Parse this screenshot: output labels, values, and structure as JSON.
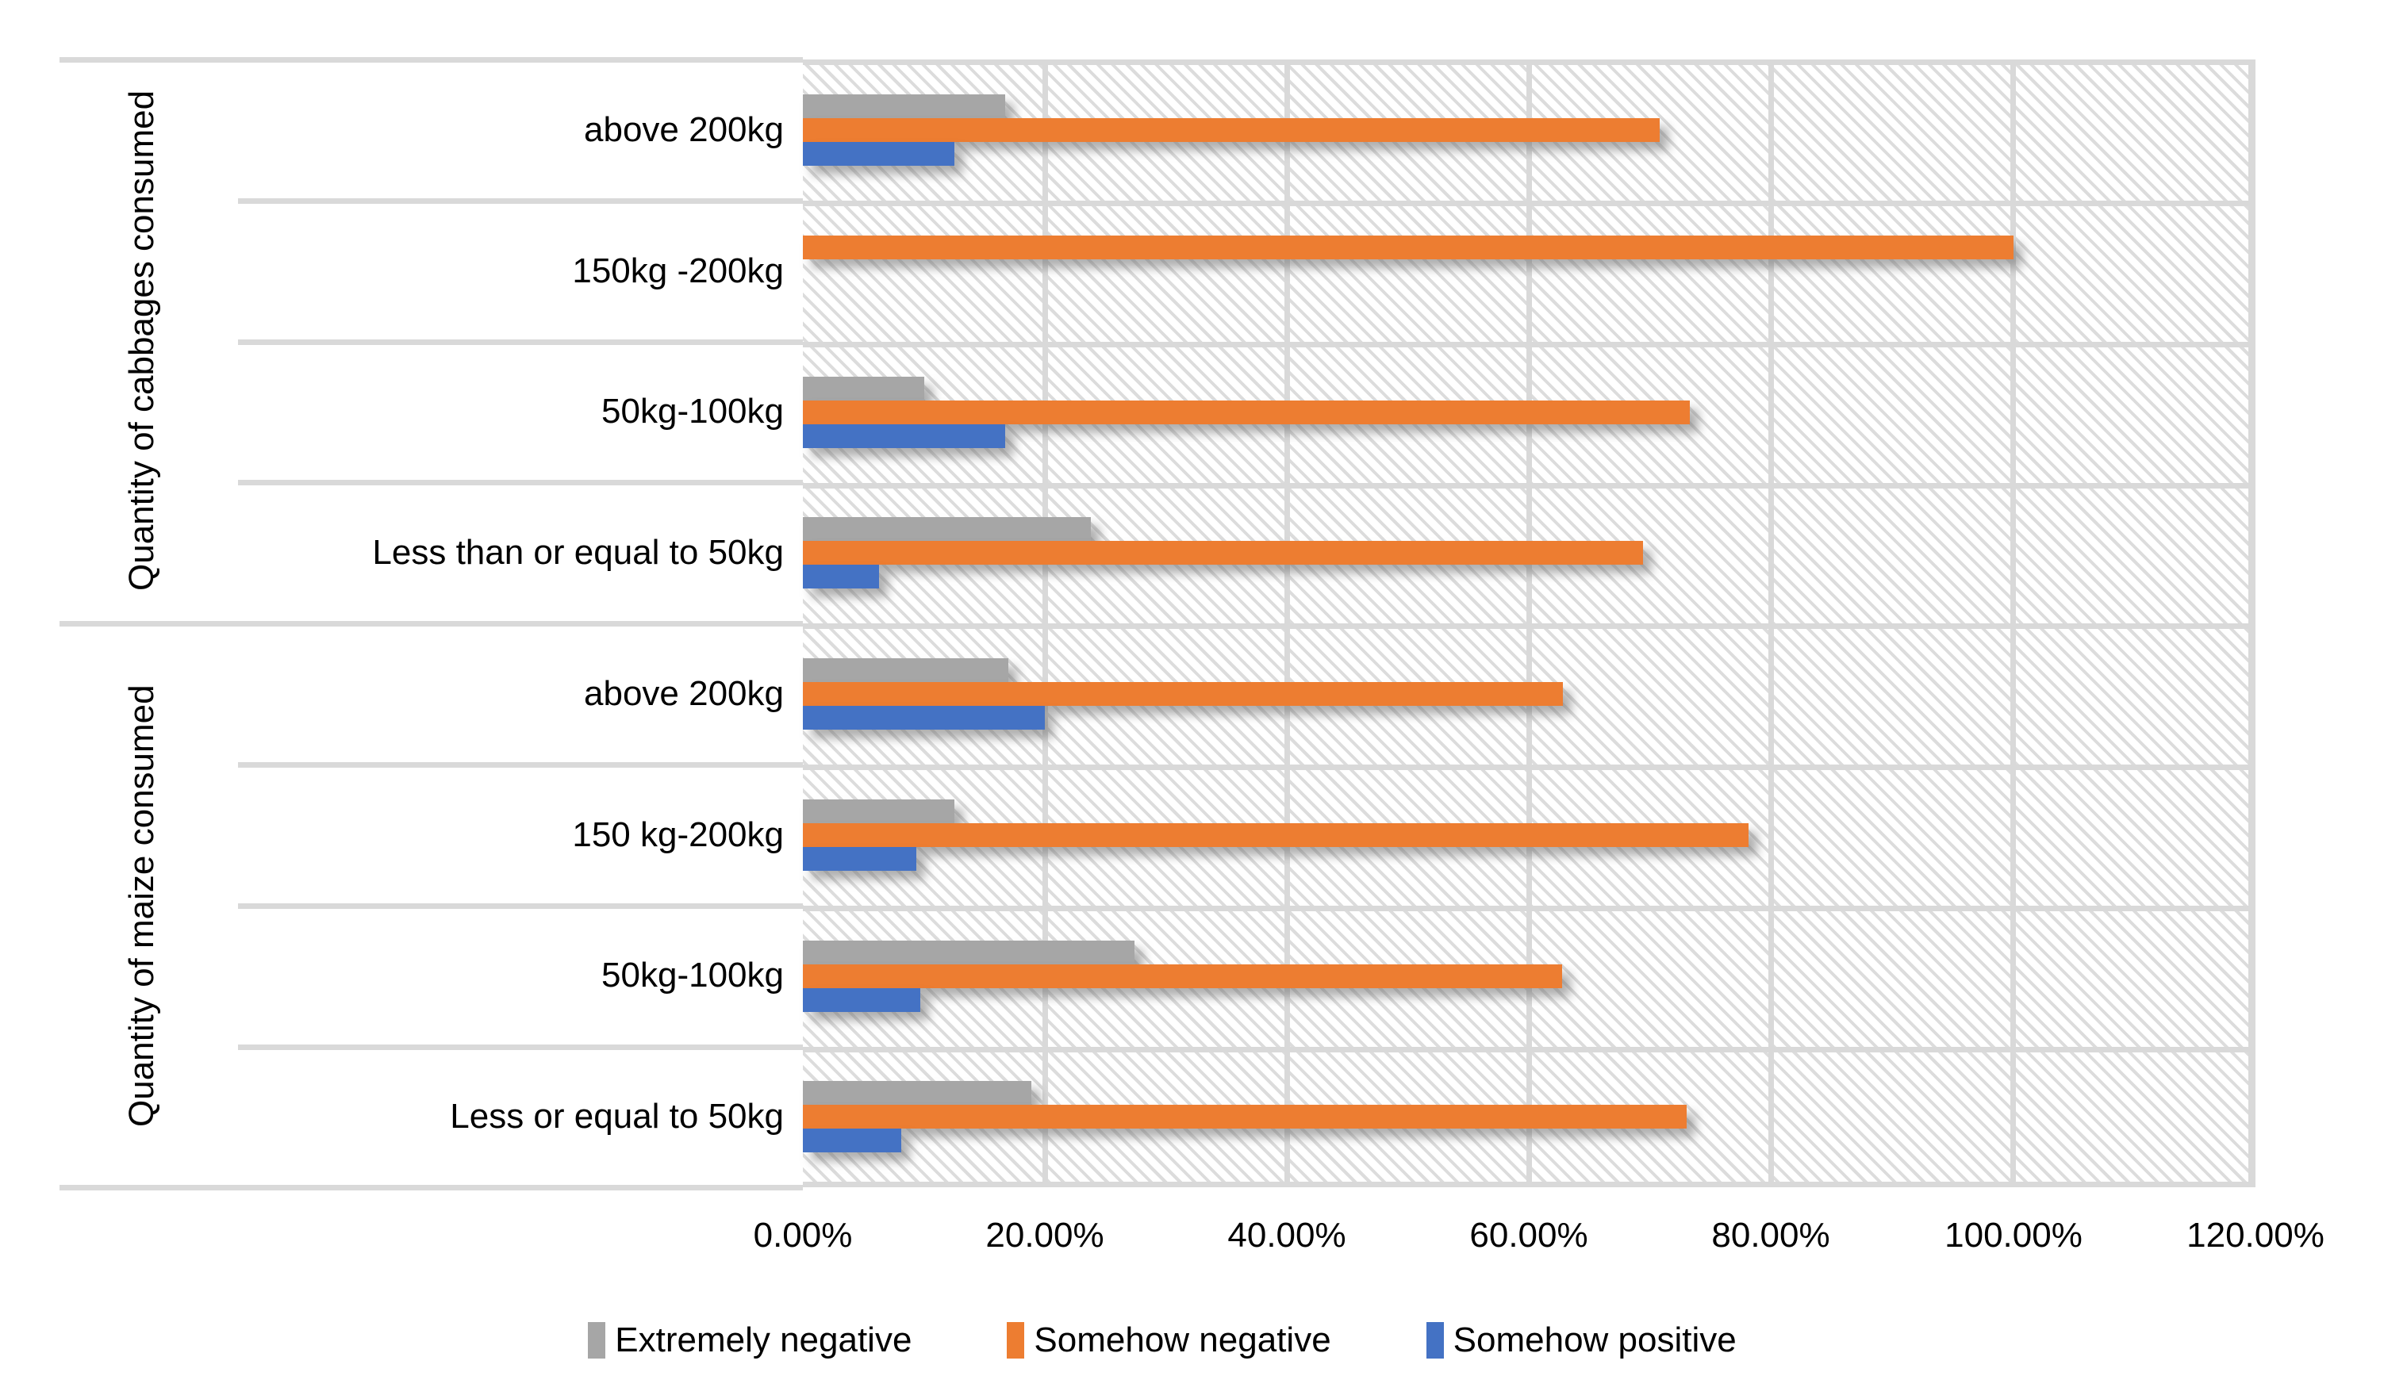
{
  "chart_data": {
    "type": "bar",
    "orientation": "horizontal",
    "title": "",
    "plot_background": "light-gray diagonal hatch",
    "grid": true,
    "x_axis": {
      "min": 0,
      "max": 120,
      "unit": "%",
      "tick_labels": [
        "0.00%",
        "20.00%",
        "40.00%",
        "60.00%",
        "80.00%",
        "100.00%",
        "120.00%"
      ]
    },
    "y_axis": {
      "groups": [
        {
          "label": "Quantity of cabbages consumed",
          "categories": [
            "above 200kg",
            "150kg -200kg",
            "50kg-100kg",
            "Less than or equal to 50kg"
          ]
        },
        {
          "label": "Quantity of maize consumed",
          "categories": [
            "above 200kg",
            "150 kg-200kg",
            "50kg-100kg",
            "Less or equal to 50kg"
          ]
        }
      ],
      "row_order_top_to_bottom": [
        "cabbages: above 200kg",
        "cabbages: 150kg -200kg",
        "cabbages: 50kg-100kg",
        "cabbages: Less than or equal to 50kg",
        "maize: above 200kg",
        "maize: 150 kg-200kg",
        "maize: 50kg-100kg",
        "maize: Less or equal to 50kg"
      ]
    },
    "series": [
      {
        "name": "Extremely negative",
        "color": "#a6a6a6",
        "values": [
          16.7,
          0,
          10.0,
          23.8,
          17.0,
          12.5,
          27.4,
          18.9
        ]
      },
      {
        "name": "Somehow negative",
        "color": "#ed7d31",
        "values": [
          70.8,
          100.0,
          73.3,
          69.4,
          62.8,
          78.1,
          62.7,
          73.0
        ]
      },
      {
        "name": "Somehow positive",
        "color": "#4472c4",
        "values": [
          12.5,
          0,
          16.7,
          6.3,
          20.0,
          9.4,
          9.7,
          8.1
        ]
      }
    ],
    "bar_order_top_to_bottom_within_row": [
      "Extremely negative",
      "Somehow negative",
      "Somehow positive"
    ],
    "legend": {
      "position": "bottom",
      "entries": [
        "Extremely negative",
        "Somehow negative",
        "Somehow positive"
      ]
    }
  },
  "colors": {
    "series_gray": "#a6a6a6",
    "series_orange": "#ed7d31",
    "series_blue": "#4472c4",
    "gridline": "#d9d9d9",
    "text": "#000000",
    "background": "#ffffff"
  }
}
